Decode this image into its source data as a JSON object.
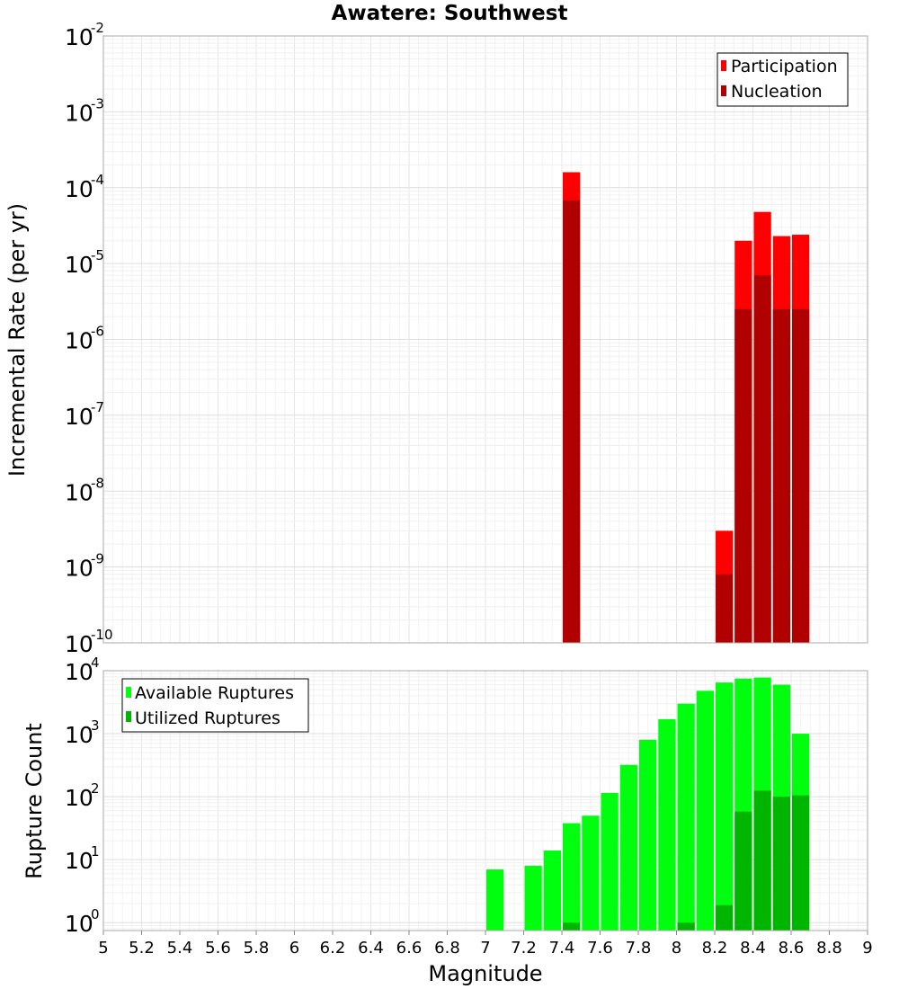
{
  "chart_data": [
    {
      "type": "bar",
      "title": "Awatere: Southwest",
      "xlabel": "",
      "ylabel": "Incremental Rate (per yr)",
      "y_scale": "log",
      "ylim": [
        1e-10,
        0.01
      ],
      "xlim": [
        5,
        9
      ],
      "grid": true,
      "legend_position": "top-right",
      "series": [
        {
          "name": "Participation",
          "color": "#ff0000",
          "points": [
            {
              "x": 7.45,
              "y": 0.00016
            },
            {
              "x": 8.25,
              "y": 3e-09
            },
            {
              "x": 8.35,
              "y": 2e-05
            },
            {
              "x": 8.45,
              "y": 4.8e-05
            },
            {
              "x": 8.55,
              "y": 2.3e-05
            },
            {
              "x": 8.65,
              "y": 2.4e-05
            }
          ]
        },
        {
          "name": "Nucleation",
          "color": "#b00000",
          "points": [
            {
              "x": 7.45,
              "y": 6.8e-05
            },
            {
              "x": 8.25,
              "y": 8e-10
            },
            {
              "x": 8.35,
              "y": 2.5e-06
            },
            {
              "x": 8.45,
              "y": 7e-06
            },
            {
              "x": 8.55,
              "y": 2.5e-06
            },
            {
              "x": 8.65,
              "y": 2.5e-06
            }
          ]
        }
      ]
    },
    {
      "type": "bar",
      "title": "",
      "xlabel": "Magnitude",
      "ylabel": "Rupture Count",
      "y_scale": "log",
      "ylim": [
        0.75,
        10000
      ],
      "xlim": [
        5,
        9
      ],
      "x_ticks": [
        "5",
        "5.2",
        "5.4",
        "5.6",
        "5.8",
        "6",
        "6.2",
        "6.4",
        "6.6",
        "6.8",
        "7",
        "7.2",
        "7.4",
        "7.6",
        "7.8",
        "8",
        "8.2",
        "8.4",
        "8.6",
        "8.8",
        "9"
      ],
      "grid": true,
      "legend_position": "top-left",
      "series": [
        {
          "name": "Available Ruptures",
          "color": "#00ff0f",
          "points": [
            {
              "x": 7.05,
              "y": 7
            },
            {
              "x": 7.25,
              "y": 8
            },
            {
              "x": 7.35,
              "y": 14
            },
            {
              "x": 7.45,
              "y": 38
            },
            {
              "x": 7.55,
              "y": 50
            },
            {
              "x": 7.65,
              "y": 115
            },
            {
              "x": 7.75,
              "y": 320
            },
            {
              "x": 7.85,
              "y": 800
            },
            {
              "x": 7.95,
              "y": 1700
            },
            {
              "x": 8.05,
              "y": 3000
            },
            {
              "x": 8.15,
              "y": 4800
            },
            {
              "x": 8.25,
              "y": 6500
            },
            {
              "x": 8.35,
              "y": 7500
            },
            {
              "x": 8.45,
              "y": 7800
            },
            {
              "x": 8.55,
              "y": 6000
            },
            {
              "x": 8.65,
              "y": 1000
            }
          ]
        },
        {
          "name": "Utilized Ruptures",
          "color": "#00b500",
          "points": [
            {
              "x": 7.45,
              "y": 1
            },
            {
              "x": 8.05,
              "y": 1
            },
            {
              "x": 8.25,
              "y": 1.9
            },
            {
              "x": 8.35,
              "y": 58
            },
            {
              "x": 8.45,
              "y": 125
            },
            {
              "x": 8.55,
              "y": 100
            },
            {
              "x": 8.65,
              "y": 105
            }
          ]
        }
      ]
    }
  ]
}
